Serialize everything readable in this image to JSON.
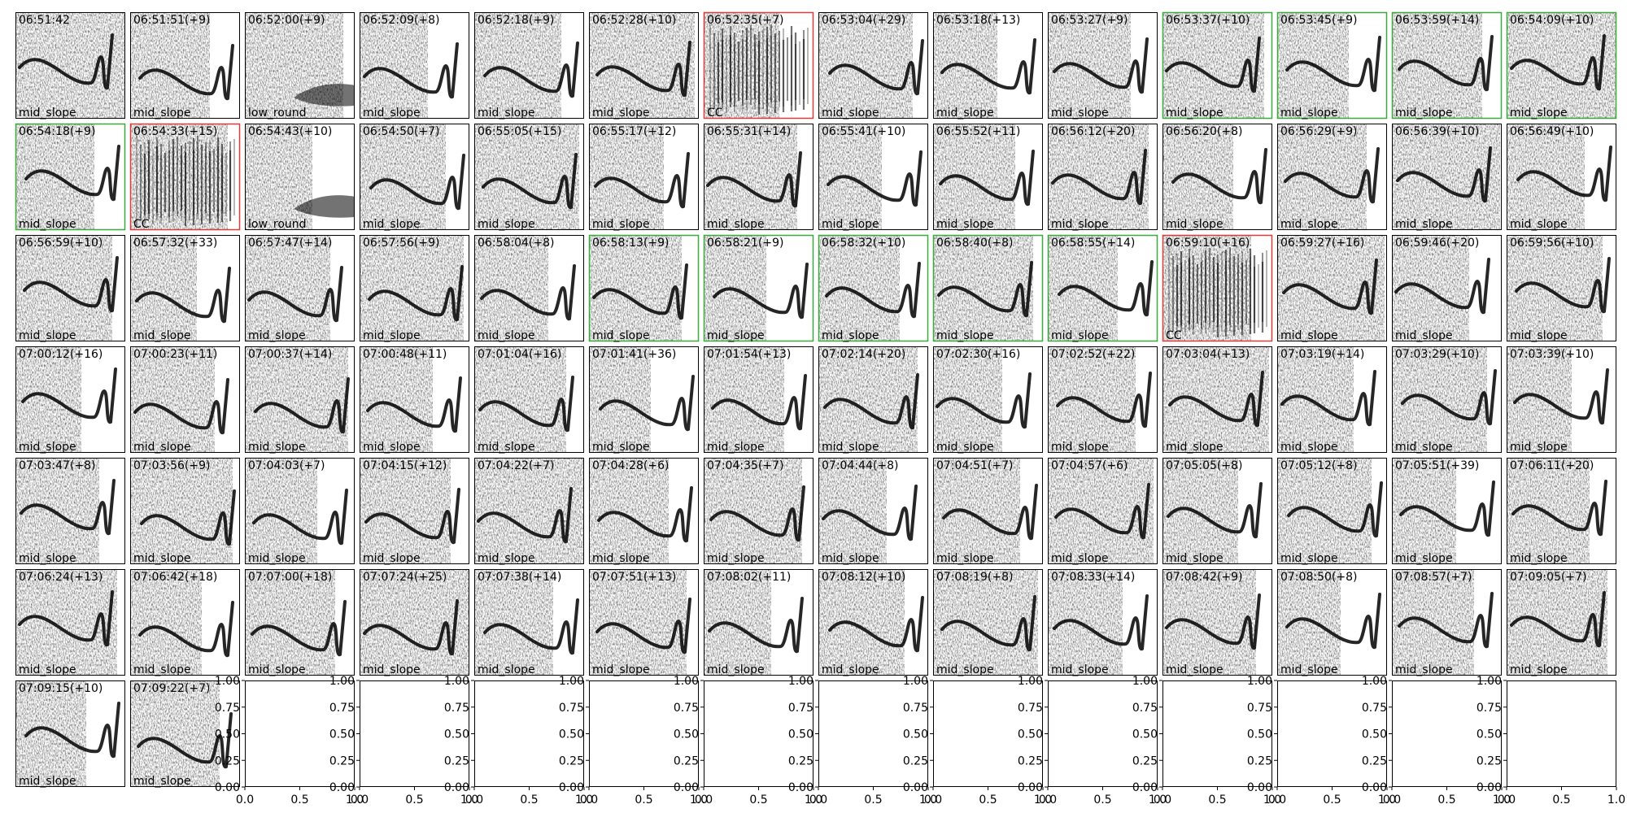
{
  "panels": [
    {
      "time": "06:51:42",
      "label": "mid_slope",
      "border": "#000000"
    },
    {
      "time": "06:51:51(+9)",
      "label": "mid_slope",
      "border": "#000000"
    },
    {
      "time": "06:52:00(+9)",
      "label": "low_round",
      "border": "#000000"
    },
    {
      "time": "06:52:09(+8)",
      "label": "mid_slope",
      "border": "#000000"
    },
    {
      "time": "06:52:18(+9)",
      "label": "mid_slope",
      "border": "#000000"
    },
    {
      "time": "06:52:28(+10)",
      "label": "mid_slope",
      "border": "#000000"
    },
    {
      "time": "06:52:35(+7)",
      "label": "CC",
      "border": "#e03a3a"
    },
    {
      "time": "06:53:04(+29)",
      "label": "mid_slope",
      "border": "#000000"
    },
    {
      "time": "06:53:18(+13)",
      "label": "mid_slope",
      "border": "#000000"
    },
    {
      "time": "06:53:27(+9)",
      "label": "mid_slope",
      "border": "#000000"
    },
    {
      "time": "06:53:37(+10)",
      "label": "mid_slope",
      "border": "#3aaa3a"
    },
    {
      "time": "06:53:45(+9)",
      "label": "mid_slope",
      "border": "#3aaa3a"
    },
    {
      "time": "06:53:59(+14)",
      "label": "mid_slope",
      "border": "#3aaa3a"
    },
    {
      "time": "06:54:09(+10)",
      "label": "mid_slope",
      "border": "#3aaa3a"
    },
    {
      "time": "06:54:18(+9)",
      "label": "mid_slope",
      "border": "#3aaa3a"
    },
    {
      "time": "06:54:33(+15)",
      "label": "CC",
      "border": "#e03a3a"
    },
    {
      "time": "06:54:43(+10)",
      "label": "low_round",
      "border": "#000000"
    },
    {
      "time": "06:54:50(+7)",
      "label": "mid_slope",
      "border": "#000000"
    },
    {
      "time": "06:55:05(+15)",
      "label": "mid_slope",
      "border": "#000000"
    },
    {
      "time": "06:55:17(+12)",
      "label": "mid_slope",
      "border": "#000000"
    },
    {
      "time": "06:55:31(+14)",
      "label": "mid_slope",
      "border": "#000000"
    },
    {
      "time": "06:55:41(+10)",
      "label": "mid_slope",
      "border": "#000000"
    },
    {
      "time": "06:55:52(+11)",
      "label": "mid_slope",
      "border": "#000000"
    },
    {
      "time": "06:56:12(+20)",
      "label": "mid_slope",
      "border": "#000000"
    },
    {
      "time": "06:56:20(+8)",
      "label": "mid_slope",
      "border": "#000000"
    },
    {
      "time": "06:56:29(+9)",
      "label": "mid_slope",
      "border": "#000000"
    },
    {
      "time": "06:56:39(+10)",
      "label": "mid_slope",
      "border": "#000000"
    },
    {
      "time": "06:56:49(+10)",
      "label": "mid_slope",
      "border": "#000000"
    },
    {
      "time": "06:56:59(+10)",
      "label": "mid_slope",
      "border": "#000000"
    },
    {
      "time": "06:57:32(+33)",
      "label": "mid_slope",
      "border": "#000000"
    },
    {
      "time": "06:57:47(+14)",
      "label": "mid_slope",
      "border": "#000000"
    },
    {
      "time": "06:57:56(+9)",
      "label": "mid_slope",
      "border": "#000000"
    },
    {
      "time": "06:58:04(+8)",
      "label": "mid_slope",
      "border": "#000000"
    },
    {
      "time": "06:58:13(+9)",
      "label": "mid_slope",
      "border": "#3aaa3a"
    },
    {
      "time": "06:58:21(+9)",
      "label": "mid_slope",
      "border": "#3aaa3a"
    },
    {
      "time": "06:58:32(+10)",
      "label": "mid_slope",
      "border": "#3aaa3a"
    },
    {
      "time": "06:58:40(+8)",
      "label": "mid_slope",
      "border": "#3aaa3a"
    },
    {
      "time": "06:58:55(+14)",
      "label": "mid_slope",
      "border": "#3aaa3a"
    },
    {
      "time": "06:59:10(+16)",
      "label": "CC",
      "border": "#e03a3a"
    },
    {
      "time": "06:59:27(+16)",
      "label": "mid_slope",
      "border": "#000000"
    },
    {
      "time": "06:59:46(+20)",
      "label": "mid_slope",
      "border": "#000000"
    },
    {
      "time": "06:59:56(+10)",
      "label": "mid_slope",
      "border": "#000000"
    },
    {
      "time": "07:00:12(+16)",
      "label": "mid_slope",
      "border": "#000000"
    },
    {
      "time": "07:00:23(+11)",
      "label": "mid_slope",
      "border": "#000000"
    },
    {
      "time": "07:00:37(+14)",
      "label": "mid_slope",
      "border": "#000000"
    },
    {
      "time": "07:00:48(+11)",
      "label": "mid_slope",
      "border": "#000000"
    },
    {
      "time": "07:01:04(+16)",
      "label": "mid_slope",
      "border": "#000000"
    },
    {
      "time": "07:01:41(+36)",
      "label": "mid_slope",
      "border": "#000000"
    },
    {
      "time": "07:01:54(+13)",
      "label": "mid_slope",
      "border": "#000000"
    },
    {
      "time": "07:02:14(+20)",
      "label": "mid_slope",
      "border": "#000000"
    },
    {
      "time": "07:02:30(+16)",
      "label": "mid_slope",
      "border": "#000000"
    },
    {
      "time": "07:02:52(+22)",
      "label": "mid_slope",
      "border": "#000000"
    },
    {
      "time": "07:03:04(+13)",
      "label": "mid_slope",
      "border": "#000000"
    },
    {
      "time": "07:03:19(+14)",
      "label": "mid_slope",
      "border": "#000000"
    },
    {
      "time": "07:03:29(+10)",
      "label": "mid_slope",
      "border": "#000000"
    },
    {
      "time": "07:03:39(+10)",
      "label": "mid_slope",
      "border": "#000000"
    },
    {
      "time": "07:03:47(+8)",
      "label": "mid_slope",
      "border": "#000000"
    },
    {
      "time": "07:03:56(+9)",
      "label": "mid_slope",
      "border": "#000000"
    },
    {
      "time": "07:04:03(+7)",
      "label": "mid_slope",
      "border": "#000000"
    },
    {
      "time": "07:04:15(+12)",
      "label": "mid_slope",
      "border": "#000000"
    },
    {
      "time": "07:04:22(+7)",
      "label": "mid_slope",
      "border": "#000000"
    },
    {
      "time": "07:04:28(+6)",
      "label": "mid_slope",
      "border": "#000000"
    },
    {
      "time": "07:04:35(+7)",
      "label": "mid_slope",
      "border": "#000000"
    },
    {
      "time": "07:04:44(+8)",
      "label": "mid_slope",
      "border": "#000000"
    },
    {
      "time": "07:04:51(+7)",
      "label": "mid_slope",
      "border": "#000000"
    },
    {
      "time": "07:04:57(+6)",
      "label": "mid_slope",
      "border": "#000000"
    },
    {
      "time": "07:05:05(+8)",
      "label": "mid_slope",
      "border": "#000000"
    },
    {
      "time": "07:05:12(+8)",
      "label": "mid_slope",
      "border": "#000000"
    },
    {
      "time": "07:05:51(+39)",
      "label": "mid_slope",
      "border": "#000000"
    },
    {
      "time": "07:06:11(+20)",
      "label": "mid_slope",
      "border": "#000000"
    },
    {
      "time": "07:06:24(+13)",
      "label": "mid_slope",
      "border": "#000000"
    },
    {
      "time": "07:06:42(+18)",
      "label": "mid_slope",
      "border": "#000000"
    },
    {
      "time": "07:07:00(+18)",
      "label": "mid_slope",
      "border": "#000000"
    },
    {
      "time": "07:07:24(+25)",
      "label": "mid_slope",
      "border": "#000000"
    },
    {
      "time": "07:07:38(+14)",
      "label": "mid_slope",
      "border": "#000000"
    },
    {
      "time": "07:07:51(+13)",
      "label": "mid_slope",
      "border": "#000000"
    },
    {
      "time": "07:08:02(+11)",
      "label": "mid_slope",
      "border": "#000000"
    },
    {
      "time": "07:08:12(+10)",
      "label": "mid_slope",
      "border": "#000000"
    },
    {
      "time": "07:08:19(+8)",
      "label": "mid_slope",
      "border": "#000000"
    },
    {
      "time": "07:08:33(+14)",
      "label": "mid_slope",
      "border": "#000000"
    },
    {
      "time": "07:08:42(+9)",
      "label": "mid_slope",
      "border": "#000000"
    },
    {
      "time": "07:08:50(+8)",
      "label": "mid_slope",
      "border": "#000000"
    },
    {
      "time": "07:08:57(+7)",
      "label": "mid_slope",
      "border": "#000000"
    },
    {
      "time": "07:09:05(+7)",
      "label": "mid_slope",
      "border": "#000000"
    },
    {
      "time": "07:09:15(+10)",
      "label": "mid_slope",
      "border": "#000000"
    },
    {
      "time": "07:09:22(+7)",
      "label": "mid_slope",
      "border": "#000000"
    }
  ],
  "empty_axes": {
    "count": 12,
    "xlim": [
      0,
      1
    ],
    "ylim": [
      0,
      1
    ],
    "xticks": [
      {
        "value": 0,
        "label": "0.0"
      },
      {
        "value": 0.5,
        "label": "0.5"
      },
      {
        "value": 1,
        "label": "1.0"
      }
    ],
    "yticks": [
      {
        "value": 0,
        "label": "0.00"
      },
      {
        "value": 0.25,
        "label": "0.25"
      },
      {
        "value": 0.5,
        "label": "0.50"
      },
      {
        "value": 0.75,
        "label": "0.75"
      },
      {
        "value": 1,
        "label": "1.00"
      }
    ]
  }
}
